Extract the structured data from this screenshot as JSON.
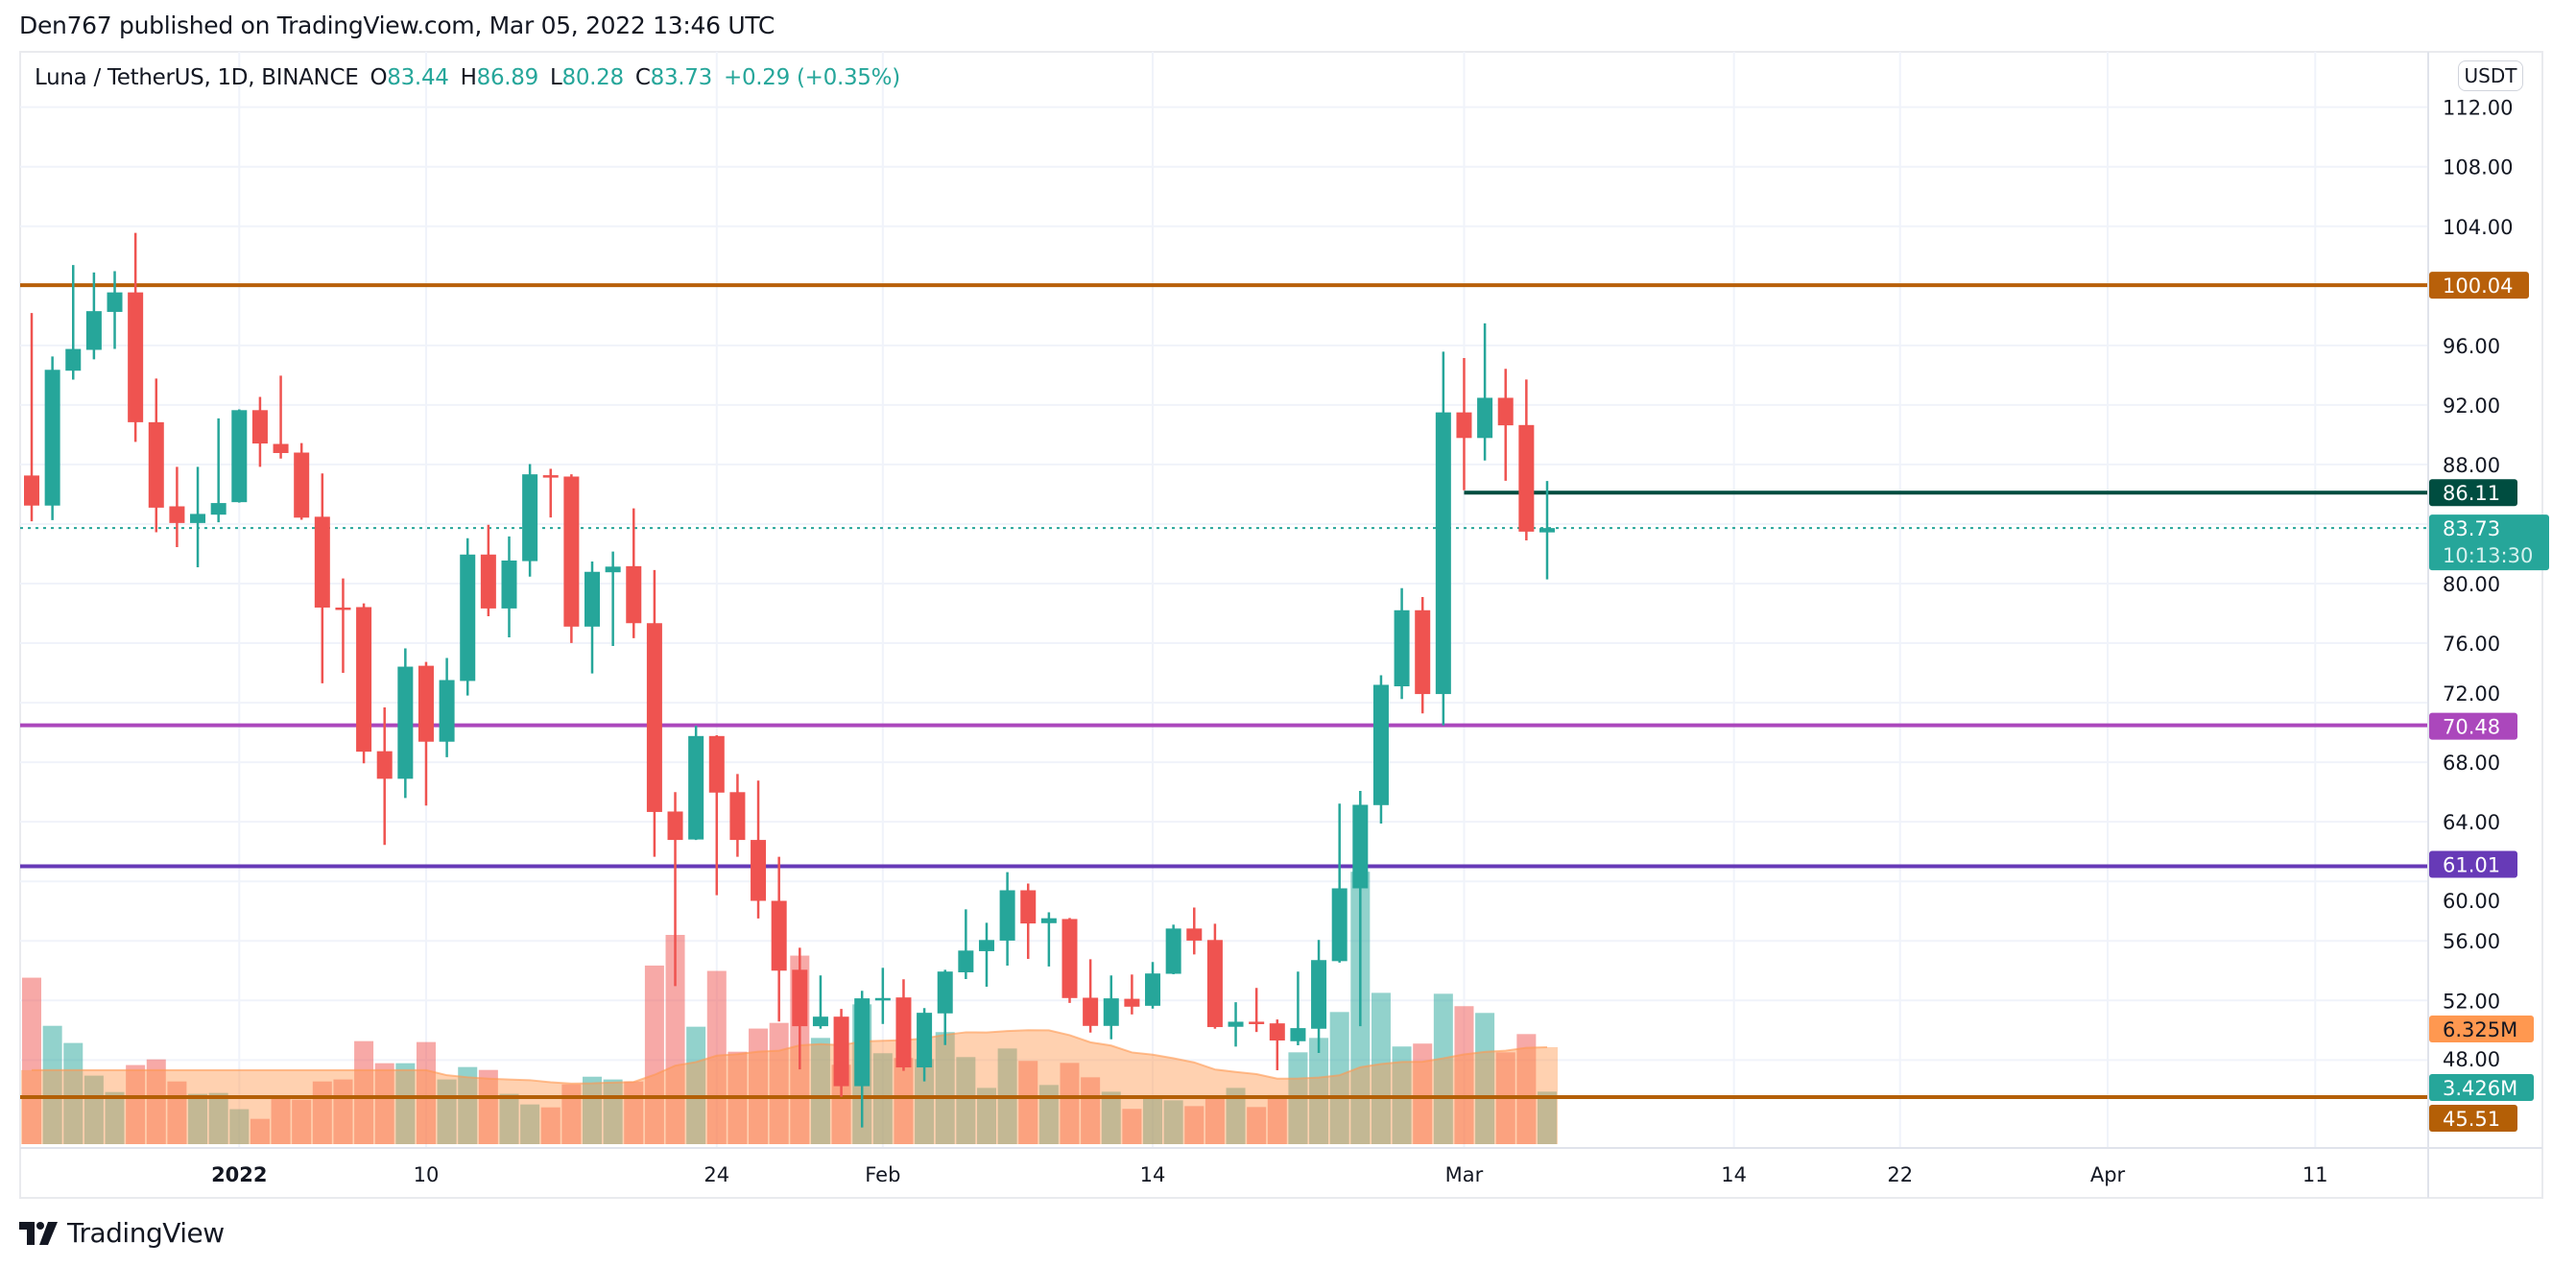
{
  "header": {
    "publisher": "Den767 published on TradingView.com, Mar 05, 2022 13:46 UTC",
    "symbol": "Luna / TetherUS, 1D, BINANCE",
    "o_label": "O",
    "o_value": "83.44",
    "h_label": "H",
    "h_value": "86.89",
    "l_label": "L",
    "l_value": "80.28",
    "c_label": "C",
    "c_value": "83.73",
    "change": "+0.29 (+0.35%)"
  },
  "price_axis": {
    "currency_button": "USDT",
    "ticks": [
      "112.00",
      "108.00",
      "104.00",
      "96.00",
      "92.00",
      "88.00",
      "80.00",
      "76.00",
      "72.00",
      "68.00",
      "64.00",
      "60.00",
      "56.00",
      "52.00",
      "48.00"
    ],
    "labels": {
      "level_100": "100.04",
      "level_86": "86.11",
      "last_price": "83.73",
      "countdown": "10:13:30",
      "level_70": "70.48",
      "level_61": "61.01",
      "volume_ma": "6.325M",
      "last_volume": "3.426M",
      "level_45": "45.51"
    }
  },
  "time_axis": {
    "labels": [
      "2022",
      "10",
      "24",
      "Feb",
      "14",
      "Mar",
      "14",
      "22",
      "Apr",
      "11"
    ]
  },
  "footer": {
    "brand": "TradingView"
  },
  "colors": {
    "up": "#26a69a",
    "down": "#ef5350",
    "level_100": "#b8600a",
    "level_86": "#004d40",
    "level_70": "#ab47bc",
    "level_61": "#673ab7",
    "level_45": "#b45f06",
    "volume_ma": "#ff9850"
  },
  "chart_data": {
    "type": "candlestick",
    "interval": "1D",
    "ylim": [
      44,
      114
    ],
    "grid": true,
    "volume_unit": "M",
    "horizontal_levels": [
      100.04,
      86.11,
      70.48,
      61.01,
      45.51
    ],
    "last_price": 83.73,
    "dates": [
      "2021-12-22",
      "2021-12-23",
      "2021-12-24",
      "2021-12-25",
      "2021-12-26",
      "2021-12-27",
      "2021-12-28",
      "2021-12-29",
      "2021-12-30",
      "2021-12-31",
      "2022-01-01",
      "2022-01-02",
      "2022-01-03",
      "2022-01-04",
      "2022-01-05",
      "2022-01-06",
      "2022-01-07",
      "2022-01-08",
      "2022-01-09",
      "2022-01-10",
      "2022-01-11",
      "2022-01-12",
      "2022-01-13",
      "2022-01-14",
      "2022-01-15",
      "2022-01-16",
      "2022-01-17",
      "2022-01-18",
      "2022-01-19",
      "2022-01-20",
      "2022-01-21",
      "2022-01-22",
      "2022-01-23",
      "2022-01-24",
      "2022-01-25",
      "2022-01-26",
      "2022-01-27",
      "2022-01-28",
      "2022-01-29",
      "2022-01-30",
      "2022-01-31",
      "2022-02-01",
      "2022-02-02",
      "2022-02-03",
      "2022-02-04",
      "2022-02-05",
      "2022-02-06",
      "2022-02-07",
      "2022-02-08",
      "2022-02-09",
      "2022-02-10",
      "2022-02-11",
      "2022-02-12",
      "2022-02-13",
      "2022-02-14",
      "2022-02-15",
      "2022-02-16",
      "2022-02-17",
      "2022-02-18",
      "2022-02-19",
      "2022-02-20",
      "2022-02-21",
      "2022-02-22",
      "2022-02-23",
      "2022-02-24",
      "2022-02-25",
      "2022-02-26",
      "2022-02-27",
      "2022-02-28",
      "2022-03-01",
      "2022-03-02",
      "2022-03-03",
      "2022-03-04",
      "2022-03-05"
    ],
    "open": [
      87.26,
      85.24,
      94.3,
      95.7,
      98.25,
      99.56,
      90.84,
      85.19,
      84.07,
      84.63,
      85.47,
      91.65,
      89.38,
      88.8,
      84.49,
      78.39,
      78.42,
      68.74,
      66.89,
      74.48,
      69.38,
      73.46,
      81.95,
      78.33,
      81.51,
      87.28,
      87.19,
      77.11,
      80.76,
      81.17,
      77.34,
      64.69,
      62.81,
      69.76,
      65.99,
      62.78,
      58.69,
      54.06,
      50.27,
      50.91,
      46.24,
      52.11,
      52.2,
      47.5,
      51.13,
      53.89,
      55.31,
      56.02,
      59.4,
      57.19,
      57.47,
      52.18,
      50.29,
      52.11,
      51.64,
      53.79,
      56.83,
      56.06,
      50.23,
      50.57,
      50.46,
      49.26,
      50.1,
      54.64,
      59.53,
      65.12,
      73.1,
      78.21,
      72.58,
      91.5,
      89.78,
      92.48,
      90.65,
      83.44
    ],
    "high": [
      98.17,
      95.26,
      101.4,
      100.9,
      100.99,
      103.56,
      93.77,
      87.84,
      87.84,
      91.1,
      91.7,
      92.54,
      93.97,
      89.44,
      87.4,
      80.35,
      78.67,
      71.68,
      75.65,
      74.74,
      75.0,
      83.05,
      83.95,
      83.17,
      88.03,
      87.71,
      87.34,
      81.48,
      82.15,
      85.05,
      80.91,
      65.99,
      70.45,
      69.81,
      67.21,
      66.77,
      61.65,
      55.54,
      53.68,
      51.43,
      52.65,
      54.19,
      53.42,
      51.49,
      54.06,
      58.12,
      57.22,
      60.62,
      59.85,
      57.92,
      57.54,
      54.77,
      53.68,
      53.74,
      54.58,
      57.09,
      58.24,
      57.15,
      51.88,
      52.84,
      50.72,
      53.94,
      56.06,
      65.22,
      66.07,
      73.84,
      79.69,
      79.1,
      95.58,
      95.15,
      97.48,
      94.43,
      93.71,
      86.89
    ],
    "low": [
      84.18,
      84.26,
      93.7,
      95.06,
      95.76,
      89.52,
      83.45,
      82.45,
      81.1,
      84.12,
      85.44,
      87.84,
      88.4,
      84.29,
      73.3,
      74.0,
      67.93,
      62.45,
      65.6,
      65.09,
      68.34,
      72.48,
      77.81,
      76.39,
      80.47,
      84.44,
      76.01,
      73.96,
      75.81,
      76.33,
      61.65,
      52.96,
      62.78,
      59.07,
      61.65,
      57.51,
      50.58,
      47.37,
      50.1,
      45.53,
      43.47,
      50.42,
      47.27,
      46.56,
      49.0,
      53.44,
      52.92,
      54.34,
      54.79,
      54.28,
      51.83,
      49.84,
      49.39,
      51.06,
      51.45,
      53.76,
      55.09,
      50.1,
      48.9,
      49.88,
      47.31,
      48.99,
      48.47,
      54.54,
      50.27,
      63.88,
      72.25,
      71.28,
      70.48,
      86.27,
      88.27,
      86.91,
      82.9,
      80.28
    ],
    "close": [
      85.24,
      94.36,
      95.76,
      98.3,
      99.56,
      90.84,
      85.1,
      84.07,
      84.68,
      85.41,
      91.65,
      89.41,
      88.77,
      84.43,
      78.39,
      78.34,
      68.71,
      66.89,
      74.42,
      69.38,
      73.52,
      81.95,
      78.33,
      81.55,
      87.34,
      87.22,
      77.11,
      80.79,
      81.14,
      77.34,
      64.66,
      62.78,
      69.76,
      65.96,
      62.78,
      58.69,
      54.0,
      50.27,
      50.91,
      46.24,
      52.14,
      52.16,
      47.5,
      51.17,
      53.94,
      55.35,
      56.06,
      59.4,
      57.17,
      57.52,
      52.16,
      50.29,
      52.14,
      51.58,
      53.81,
      56.83,
      56.02,
      50.21,
      50.57,
      50.42,
      49.31,
      50.14,
      54.71,
      59.53,
      65.14,
      73.2,
      78.21,
      72.58,
      91.5,
      89.78,
      92.48,
      90.63,
      83.49,
      83.73
    ],
    "volume": [
      10.86,
      7.72,
      6.6,
      4.47,
      3.4,
      5.16,
      5.53,
      4.09,
      3.28,
      3.34,
      2.28,
      1.65,
      3.07,
      2.9,
      4.09,
      4.22,
      6.72,
      5.28,
      5.28,
      6.66,
      4.22,
      5.03,
      4.84,
      3.28,
      2.59,
      2.4,
      3.9,
      4.4,
      4.22,
      4.09,
      11.65,
      13.65,
      7.66,
      11.3,
      6.03,
      7.54,
      7.91,
      12.3,
      6.93,
      5.18,
      9.12,
      5.93,
      5.62,
      5.55,
      7.31,
      5.68,
      3.67,
      6.24,
      5.43,
      3.86,
      5.3,
      4.36,
      3.42,
      2.3,
      3.1,
      2.86,
      2.48,
      3.1,
      3.67,
      2.42,
      3.2,
      5.99,
      6.93,
      8.62,
      17.77,
      9.87,
      6.37,
      6.56,
      9.81,
      9.0,
      8.56,
      5.99,
      7.18,
      3.426
    ],
    "volume_ma_last": 6.325
  }
}
